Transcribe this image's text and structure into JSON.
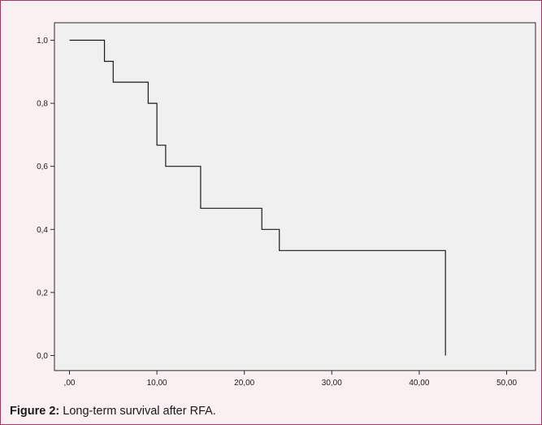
{
  "caption": {
    "label": "Figure 2:",
    "text": " Long-term survival after RFA."
  },
  "colors": {
    "frame_border": "#a23a66",
    "frame_background": "#fbf0f1",
    "plot_background": "#f0f0f0",
    "line": "#1a1a1a"
  },
  "chart_data": {
    "type": "line",
    "subtype": "kaplan-meier-step",
    "title": "",
    "xlabel": "",
    "ylabel": "",
    "xlim": [
      0,
      50
    ],
    "ylim": [
      0,
      1
    ],
    "grid": false,
    "x_tick_labels": [
      ",00",
      "10,00",
      "20,00",
      "30,00",
      "40,00",
      "50,00"
    ],
    "y_tick_labels": [
      "0,0",
      "0,2",
      "0,4",
      "0,6",
      "0,8",
      "1,0"
    ],
    "x_ticks": [
      0,
      10,
      20,
      30,
      40,
      50
    ],
    "y_ticks": [
      0,
      0.2,
      0.4,
      0.6,
      0.8,
      1.0
    ],
    "series": [
      {
        "x": [
          0,
          4,
          5,
          9,
          10,
          11,
          15,
          22,
          24,
          43,
          43
        ],
        "y": [
          1.0,
          0.933,
          0.867,
          0.8,
          0.667,
          0.6,
          0.467,
          0.4,
          0.333,
          0.067,
          0.0
        ]
      }
    ]
  }
}
